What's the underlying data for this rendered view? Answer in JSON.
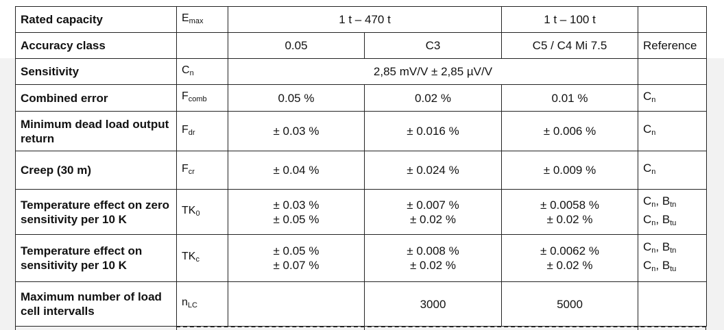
{
  "table": {
    "rows": [
      {
        "label": "Rated capacity",
        "symbol": {
          "base": "E",
          "sub": "max"
        },
        "cells": [
          "1 t – 470 t",
          "1 t – 100 t"
        ]
      },
      {
        "label": "Accuracy class",
        "cells": [
          "0.05",
          "C3",
          "C5 / C4 Mi 7.5"
        ],
        "reference": [
          [
            {
              "base": "Reference"
            }
          ]
        ]
      },
      {
        "label": "Sensitivity",
        "symbol": {
          "base": "C",
          "sub": "n"
        },
        "cells": [
          "2,85 mV/V ± 2,85 µV/V"
        ]
      },
      {
        "label": "Combined error",
        "symbol": {
          "base": "F",
          "sub": "comb"
        },
        "cells": [
          "0.05 %",
          "0.02 %",
          "0.01 %"
        ],
        "reference": [
          [
            {
              "base": "C",
              "sub": "n"
            }
          ]
        ]
      },
      {
        "label": "Minimum dead load output return",
        "symbol": {
          "base": "F",
          "sub": "dr"
        },
        "cells": [
          "± 0.03 %",
          "± 0.016 %",
          "± 0.006 %"
        ],
        "reference": [
          [
            {
              "base": "C",
              "sub": "n"
            }
          ]
        ]
      },
      {
        "label": "Creep (30 m)",
        "symbol": {
          "base": "F",
          "sub": "cr"
        },
        "cells": [
          "± 0.04 %",
          "± 0.024 %",
          "± 0.009 %"
        ],
        "reference": [
          [
            {
              "base": "C",
              "sub": "n"
            }
          ]
        ]
      },
      {
        "label": [
          "Temperature effect on zero",
          "sensitivity per 10 K"
        ],
        "symbol": {
          "base": "TK",
          "sub": "0"
        },
        "cells": [
          [
            "± 0.03 %",
            "± 0.05 %"
          ],
          [
            "± 0.007 %",
            "± 0.02 %"
          ],
          [
            "± 0.0058 %",
            "± 0.02 %"
          ]
        ],
        "reference": [
          [
            {
              "base": "C",
              "sub": "n"
            },
            {
              "base": ", B",
              "sub": "tn"
            }
          ],
          [
            {
              "base": "C",
              "sub": "n"
            },
            {
              "base": ", B",
              "sub": "tu"
            }
          ]
        ]
      },
      {
        "label": "Temperature effect on sensitivity per 10 K",
        "symbol": {
          "base": "TK",
          "sub": "c"
        },
        "cells": [
          [
            "± 0.05 %",
            "± 0.07 %"
          ],
          [
            "± 0.008 %",
            "± 0.02 %"
          ],
          [
            "± 0.0062 %",
            "± 0.02 %"
          ]
        ],
        "reference": [
          [
            {
              "base": "C",
              "sub": "n"
            },
            {
              "base": ", B",
              "sub": "tn"
            }
          ],
          [
            {
              "base": "C",
              "sub": "n"
            },
            {
              "base": ", B",
              "sub": "tu"
            }
          ]
        ]
      },
      {
        "label": "Maximum number of load cell intervalls",
        "symbol": {
          "base": "n",
          "sub": "LC"
        },
        "cells": [
          "3000",
          "5000"
        ]
      }
    ]
  }
}
